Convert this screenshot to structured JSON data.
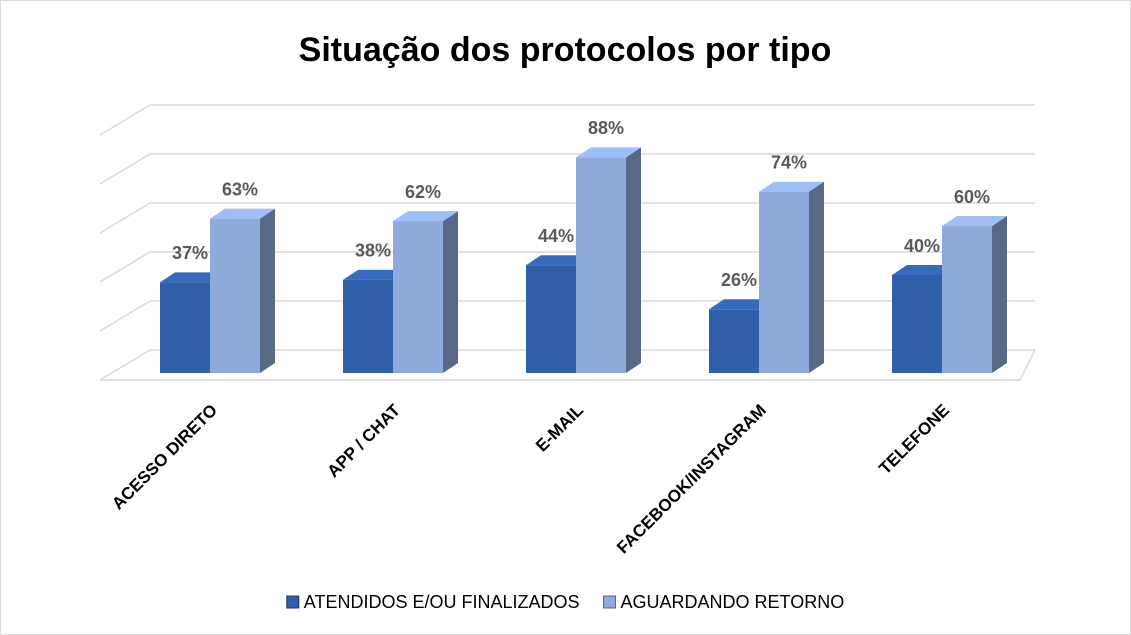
{
  "chart_data": {
    "type": "bar3d",
    "title": "Situação dos protocolos por tipo",
    "categories": [
      "ACESSO DIRETO",
      "APP / CHAT",
      "E-MAIL",
      "FACEBOOK/INSTAGRAM",
      "TELEFONE"
    ],
    "series": [
      {
        "name": "ATENDIDOS E/OU FINALIZADOS",
        "color": "#2f5fa8",
        "values": [
          37,
          38,
          44,
          26,
          40
        ],
        "value_labels": [
          "37%",
          "38%",
          "44%",
          "26%",
          "40%"
        ]
      },
      {
        "name": "AGUARDANDO RETORNO",
        "color": "#8eaadb",
        "values": [
          63,
          62,
          88,
          74,
          60
        ],
        "value_labels": [
          "63%",
          "62%",
          "88%",
          "74%",
          "60%"
        ]
      }
    ],
    "ylim": [
      0,
      100
    ],
    "yticks": [
      0,
      20,
      40,
      60,
      80,
      100
    ],
    "grid": true
  }
}
